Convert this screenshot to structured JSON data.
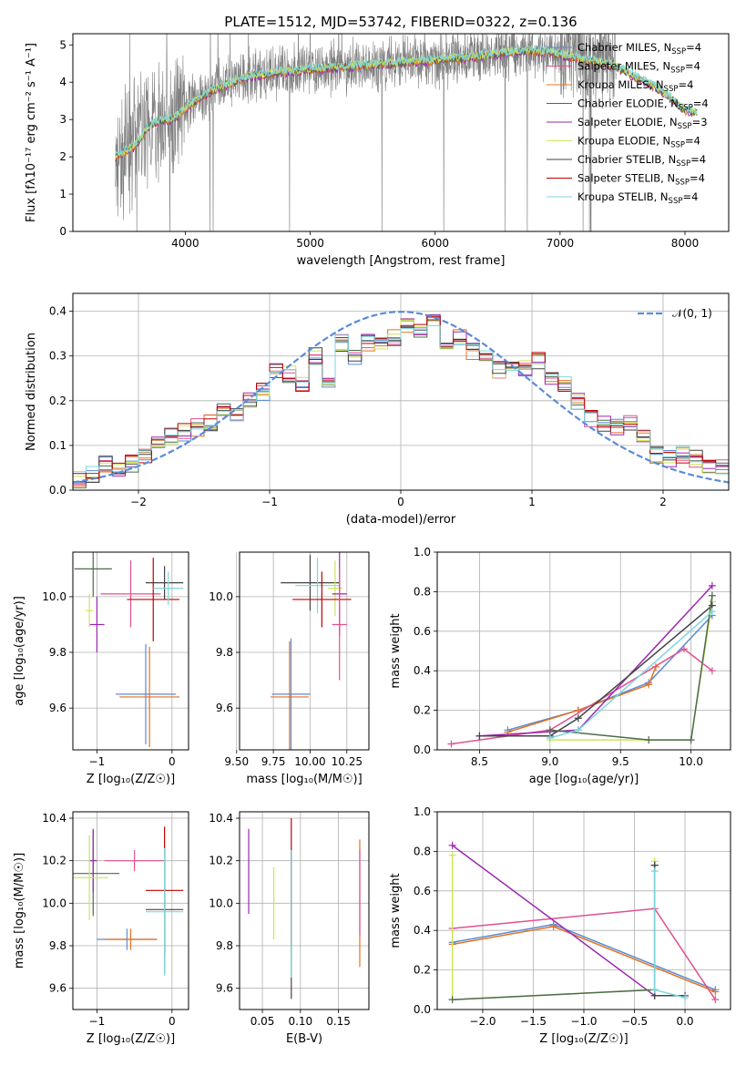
{
  "title": "PLATE=1512, MJD=53742, FIBERID=0322, z=0.136",
  "colors": {
    "chabrier_miles": "#5a8bd6",
    "salpeter_miles": "#e2508f",
    "kroupa_miles": "#e37222",
    "chabrier_elodie": "#4d6b4d",
    "salpeter_elodie": "#9b27b0",
    "kroupa_elodie": "#cde55a",
    "chabrier_stelib": "#444444",
    "salpeter_stelib": "#c00000",
    "kroupa_stelib": "#7fd6dc",
    "data": "#808080",
    "normal": "#5b8bd9",
    "grid": "#b0b0b0"
  },
  "legend": [
    {
      "base": "Chabrier MILES, N",
      "sub": "SSP",
      "tail": "=4",
      "color": "#5a8bd6"
    },
    {
      "base": "Salpeter MILES, N",
      "sub": "SSP",
      "tail": "=4",
      "color": "#e2508f"
    },
    {
      "base": "Kroupa MILES, N",
      "sub": "SSP",
      "tail": "=4",
      "color": "#e37222"
    },
    {
      "base": "Chabrier ELODIE, N",
      "sub": "SSP",
      "tail": "=4",
      "color": "#4d6b4d"
    },
    {
      "base": "Salpeter ELODIE, N",
      "sub": "SSP",
      "tail": "=3",
      "color": "#9b27b0"
    },
    {
      "base": "Kroupa ELODIE, N",
      "sub": "SSP",
      "tail": "=4",
      "color": "#cde55a"
    },
    {
      "base": "Chabrier STELIB, N",
      "sub": "SSP",
      "tail": "=4",
      "color": "#444444"
    },
    {
      "base": "Salpeter STELIB, N",
      "sub": "SSP",
      "tail": "=4",
      "color": "#c00000"
    },
    {
      "base": "Kroupa STELIB, N",
      "sub": "SSP",
      "tail": "=4",
      "color": "#7fd6dc"
    }
  ],
  "chart_data": [
    {
      "type": "line",
      "panel": "spectrum",
      "xlabel": "wavelength [Angstrom, rest frame]",
      "ylabel": "Flux [fλ10⁻¹⁷ erg cm⁻² s⁻¹ A⁻¹]",
      "xlim": [
        3100,
        8350
      ],
      "ylim": [
        0,
        5.3
      ],
      "xticks": [
        "4000",
        "5000",
        "6000",
        "7000",
        "8000"
      ],
      "yticks": [
        "0",
        "1",
        "2",
        "3",
        "4",
        "5"
      ],
      "continuum": {
        "x": [
          3440,
          3600,
          3700,
          3800,
          3900,
          4000,
          4100,
          4200,
          4300,
          4500,
          4700,
          4900,
          5000,
          5200,
          5400,
          5600,
          5800,
          6000,
          6200,
          6400,
          6600,
          6800,
          7000,
          7200,
          7400,
          7600,
          7800,
          8000,
          8100
        ],
        "y": [
          2.0,
          2.3,
          2.8,
          3.0,
          3.0,
          3.3,
          3.55,
          3.75,
          3.9,
          4.15,
          4.25,
          4.3,
          4.35,
          4.4,
          4.45,
          4.5,
          4.55,
          4.6,
          4.65,
          4.72,
          4.8,
          4.85,
          4.75,
          4.6,
          4.5,
          4.15,
          3.8,
          3.25,
          3.2
        ]
      },
      "data_range": [
        3440,
        7450
      ],
      "model_range": [
        3440,
        8100
      ]
    },
    {
      "type": "area",
      "panel": "residual-histogram",
      "xlabel": "(data-model)/error",
      "ylabel": "Normed distribution",
      "xlim": [
        -2.5,
        2.5
      ],
      "ylim": [
        0,
        0.44
      ],
      "xticks": [
        "−2",
        "−1",
        "0",
        "1",
        "2"
      ],
      "yticks": [
        "0.0",
        "0.1",
        "0.2",
        "0.3",
        "0.4"
      ],
      "bins": [
        -2.5,
        -2.4,
        -2.3,
        -2.2,
        -2.1,
        -2.0,
        -1.9,
        -1.8,
        -1.7,
        -1.6,
        -1.5,
        -1.4,
        -1.3,
        -1.2,
        -1.1,
        -1.0,
        -0.9,
        -0.8,
        -0.7,
        -0.6,
        -0.5,
        -0.4,
        -0.3,
        -0.2,
        -0.1,
        0.0,
        0.1,
        0.2,
        0.3,
        0.4,
        0.5,
        0.6,
        0.7,
        0.8,
        0.9,
        1.0,
        1.1,
        1.2,
        1.3,
        1.4,
        1.5,
        1.6,
        1.7,
        1.8,
        1.9,
        2.0,
        2.1,
        2.2,
        2.3,
        2.4
      ],
      "hist": [
        0.025,
        0.035,
        0.06,
        0.05,
        0.06,
        0.075,
        0.1,
        0.12,
        0.13,
        0.14,
        0.15,
        0.18,
        0.17,
        0.2,
        0.22,
        0.27,
        0.26,
        0.24,
        0.3,
        0.25,
        0.33,
        0.3,
        0.33,
        0.33,
        0.34,
        0.37,
        0.36,
        0.38,
        0.33,
        0.34,
        0.31,
        0.3,
        0.27,
        0.28,
        0.27,
        0.29,
        0.25,
        0.24,
        0.2,
        0.16,
        0.15,
        0.14,
        0.15,
        0.12,
        0.08,
        0.07,
        0.08,
        0.07,
        0.05,
        0.05
      ],
      "normal_label": "𝒩(0, 1)"
    },
    {
      "type": "scatter",
      "panel": "age-vs-Z",
      "xlabel": "Z [log₁₀(Z/Z☉)]",
      "ylabel": "age  [log₁₀(age/yr)]",
      "xlim": [
        -1.32,
        0.22
      ],
      "ylim": [
        9.45,
        10.16
      ],
      "xticks": [
        "−1",
        "0"
      ],
      "yticks": [
        "9.6",
        "9.8",
        "10.0"
      ],
      "points": [
        {
          "x": -1.05,
          "y": 10.1,
          "xerr": 0.25,
          "yerr": 0.1,
          "color": "#4d6b4d"
        },
        {
          "x": -1.0,
          "y": 9.9,
          "xerr": 0.1,
          "yerr": 0.1,
          "color": "#9b27b0"
        },
        {
          "x": -1.1,
          "y": 9.95,
          "xerr": 0.05,
          "yerr": 0.06,
          "color": "#cde55a"
        },
        {
          "x": -0.35,
          "y": 9.65,
          "xerr": 0.4,
          "yerr": 0.18,
          "color": "#5a8bd6"
        },
        {
          "x": -0.55,
          "y": 10.01,
          "xerr": 0.4,
          "yerr": 0.12,
          "color": "#e2508f"
        },
        {
          "x": -0.3,
          "y": 9.64,
          "xerr": 0.4,
          "yerr": 0.18,
          "color": "#e37222"
        },
        {
          "x": -0.1,
          "y": 10.05,
          "xerr": 0.25,
          "yerr": 0.06,
          "color": "#444444"
        },
        {
          "x": -0.25,
          "y": 9.99,
          "xerr": 0.35,
          "yerr": 0.15,
          "color": "#c00000"
        },
        {
          "x": -0.05,
          "y": 10.03,
          "xerr": 0.2,
          "yerr": 0.06,
          "color": "#7fd6dc"
        }
      ]
    },
    {
      "type": "scatter",
      "panel": "age-vs-mass",
      "xlabel": "mass [log₁₀(M/M☉)]",
      "ylabel": "",
      "xlim": [
        9.52,
        10.4
      ],
      "ylim": [
        9.45,
        10.16
      ],
      "xticks": [
        "9.50",
        "9.75",
        "10.00",
        "10.25"
      ],
      "yticks": [
        "9.6",
        "9.8",
        "10.0"
      ],
      "points": [
        {
          "x": 10.0,
          "y": 10.05,
          "xerr": 0.2,
          "yerr": 0.1,
          "color": "#444444"
        },
        {
          "x": 10.05,
          "y": 10.04,
          "xerr": 0.15,
          "yerr": 0.1,
          "color": "#7fd6dc"
        },
        {
          "x": 10.17,
          "y": 10.03,
          "xerr": 0.05,
          "yerr": 0.1,
          "color": "#cde55a"
        },
        {
          "x": 10.2,
          "y": 10.01,
          "xerr": 0.05,
          "yerr": 0.15,
          "color": "#9b27b0"
        },
        {
          "x": 10.08,
          "y": 9.99,
          "xerr": 0.2,
          "yerr": 0.1,
          "color": "#c00000"
        },
        {
          "x": 9.87,
          "y": 9.65,
          "xerr": 0.13,
          "yerr": 0.2,
          "color": "#5a8bd6"
        },
        {
          "x": 9.86,
          "y": 9.64,
          "xerr": 0.13,
          "yerr": 0.2,
          "color": "#e37222"
        },
        {
          "x": 10.2,
          "y": 9.9,
          "xerr": 0.05,
          "yerr": 0.2,
          "color": "#e2508f"
        }
      ]
    },
    {
      "type": "line",
      "panel": "mass-weight-vs-age",
      "xlabel": "age  [log₁₀(age/yr)]",
      "ylabel": "mass weight",
      "xlim": [
        8.2,
        10.28
      ],
      "ylim": [
        0,
        1.0
      ],
      "xticks": [
        "8.5",
        "9.0",
        "9.5",
        "10.0"
      ],
      "yticks": [
        "0.0",
        "0.2",
        "0.4",
        "0.6",
        "0.8",
        "1.0"
      ],
      "series": [
        {
          "color": "#5a8bd6",
          "x": [
            8.7,
            9.2,
            9.7,
            10.15
          ],
          "y": [
            0.1,
            0.2,
            0.34,
            0.68
          ]
        },
        {
          "color": "#e37222",
          "x": [
            8.7,
            9.2,
            9.7,
            9.75
          ],
          "y": [
            0.09,
            0.2,
            0.33,
            0.42
          ]
        },
        {
          "color": "#e2508f",
          "x": [
            8.3,
            9.0,
            9.95,
            10.15
          ],
          "y": [
            0.03,
            0.1,
            0.51,
            0.4
          ]
        },
        {
          "color": "#9b27b0",
          "x": [
            8.5,
            9.2,
            10.15
          ],
          "y": [
            0.07,
            0.1,
            0.83
          ]
        },
        {
          "color": "#cde55a",
          "x": [
            9.0,
            9.7,
            10.0,
            10.15
          ],
          "y": [
            0.05,
            0.05,
            0.05,
            0.75
          ]
        },
        {
          "color": "#444444",
          "x": [
            8.5,
            9.0,
            9.2,
            10.15
          ],
          "y": [
            0.07,
            0.07,
            0.16,
            0.73
          ]
        },
        {
          "color": "#4d6b4d",
          "x": [
            9.0,
            9.7,
            10.0,
            10.15
          ],
          "y": [
            0.1,
            0.05,
            0.05,
            0.78
          ]
        },
        {
          "color": "#7fd6dc",
          "x": [
            9.0,
            9.2,
            10.15
          ],
          "y": [
            0.06,
            0.1,
            0.7
          ]
        }
      ]
    },
    {
      "type": "scatter",
      "panel": "mass-vs-Z",
      "xlabel": "Z [log₁₀(Z/Z☉)]",
      "ylabel": "mass [log₁₀(M/M☉)]",
      "xlim": [
        -1.32,
        0.22
      ],
      "ylim": [
        9.5,
        10.43
      ],
      "xticks": [
        "−1",
        "0"
      ],
      "yticks": [
        "9.6",
        "9.8",
        "10.0",
        "10.2",
        "10.4"
      ],
      "points": [
        {
          "x": -1.05,
          "y": 10.14,
          "xerr": 0.35,
          "yerr": 0.2,
          "color": "#4d6b4d"
        },
        {
          "x": -1.05,
          "y": 10.2,
          "xerr": 0.05,
          "yerr": 0.15,
          "color": "#9b27b0"
        },
        {
          "x": -1.1,
          "y": 10.12,
          "xerr": 0.25,
          "yerr": 0.2,
          "color": "#cde55a"
        },
        {
          "x": -0.5,
          "y": 10.2,
          "xerr": 0.4,
          "yerr": 0.05,
          "color": "#e2508f"
        },
        {
          "x": -0.6,
          "y": 9.83,
          "xerr": 0.4,
          "yerr": 0.05,
          "color": "#5a8bd6"
        },
        {
          "x": -0.55,
          "y": 9.83,
          "xerr": 0.35,
          "yerr": 0.05,
          "color": "#e37222"
        },
        {
          "x": -0.1,
          "y": 9.97,
          "xerr": 0.25,
          "yerr": 0.3,
          "color": "#444444"
        },
        {
          "x": -0.1,
          "y": 10.06,
          "xerr": 0.25,
          "yerr": 0.3,
          "color": "#c00000"
        },
        {
          "x": -0.1,
          "y": 9.96,
          "xerr": 0.25,
          "yerr": 0.3,
          "color": "#7fd6dc"
        }
      ]
    },
    {
      "type": "scatter",
      "panel": "mass-vs-ebv",
      "xlabel": "E(B-V)",
      "ylabel": "",
      "xlim": [
        0.02,
        0.19
      ],
      "ylim": [
        9.5,
        10.43
      ],
      "xticks": [
        "0.05",
        "0.10",
        "0.15"
      ],
      "yticks": [
        "9.6",
        "9.8",
        "10.0",
        "10.2",
        "10.4"
      ],
      "points": [
        {
          "x": 0.032,
          "y": 10.15,
          "yerr": 0.2,
          "color": "#9b27b0"
        },
        {
          "x": 0.065,
          "y": 10.0,
          "yerr": 0.17,
          "color": "#cde55a"
        },
        {
          "x": 0.088,
          "y": 9.9,
          "yerr": 0.35,
          "color": "#444444"
        },
        {
          "x": 0.088,
          "y": 10.1,
          "yerr": 0.3,
          "color": "#c00000"
        },
        {
          "x": 0.088,
          "y": 9.95,
          "yerr": 0.3,
          "color": "#7fd6dc"
        },
        {
          "x": 0.178,
          "y": 10.0,
          "yerr": 0.3,
          "color": "#e37222"
        },
        {
          "x": 0.178,
          "y": 10.05,
          "yerr": 0.2,
          "color": "#e2508f"
        }
      ]
    },
    {
      "type": "line",
      "panel": "mass-weight-vs-Z",
      "xlabel": "Z [log₁₀(Z/Z☉)]",
      "ylabel": "mass weight",
      "xlim": [
        -2.45,
        0.45
      ],
      "ylim": [
        0,
        1.0
      ],
      "xticks": [
        "−2.0",
        "−1.5",
        "−1.0",
        "−0.5",
        "0.0"
      ],
      "yticks": [
        "0.0",
        "0.2",
        "0.4",
        "0.6",
        "0.8",
        "1.0"
      ],
      "series": [
        {
          "color": "#5a8bd6",
          "x": [
            -2.3,
            -1.3,
            0.3
          ],
          "y": [
            0.34,
            0.43,
            0.1
          ]
        },
        {
          "color": "#e37222",
          "x": [
            -2.3,
            -1.3,
            0.3
          ],
          "y": [
            0.33,
            0.42,
            0.09
          ]
        },
        {
          "color": "#e2508f",
          "x": [
            -2.3,
            -0.3,
            0.3
          ],
          "y": [
            0.41,
            0.51,
            0.05
          ]
        },
        {
          "color": "#9b27b0",
          "x": [
            -2.3,
            -0.3
          ],
          "y": [
            0.83,
            0.07
          ]
        },
        {
          "color": "#cde55a",
          "x": [
            -2.3,
            -2.3,
            -0.3,
            -0.3
          ],
          "y": [
            0.78,
            0.05,
            0.1,
            0.75
          ]
        },
        {
          "color": "#4d6b4d",
          "x": [
            -2.3,
            -0.3,
            -0.3
          ],
          "y": [
            0.05,
            0.1,
            0.73
          ]
        },
        {
          "color": "#444444",
          "x": [
            -0.3,
            -0.3,
            0.0
          ],
          "y": [
            0.73,
            0.07,
            0.07
          ]
        },
        {
          "color": "#7fd6dc",
          "x": [
            -0.3,
            -0.3,
            0.0
          ],
          "y": [
            0.7,
            0.1,
            0.06
          ]
        }
      ]
    }
  ]
}
